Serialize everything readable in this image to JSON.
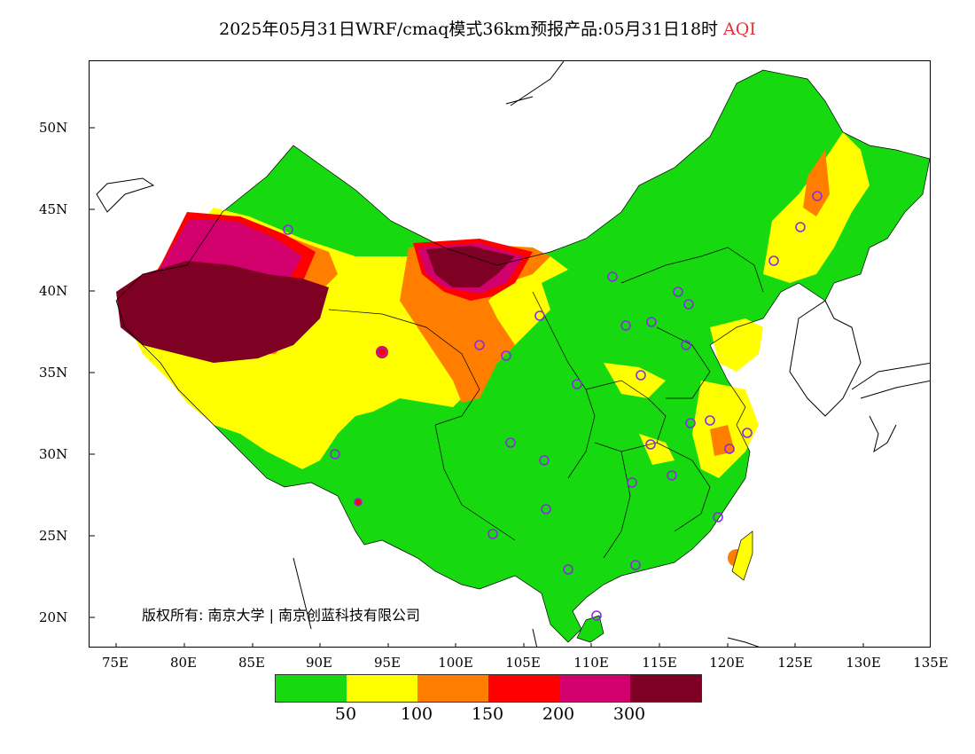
{
  "title": {
    "main": "2025年05月31日WRF/cmaq模式36km预报产品:05月31日18时",
    "variable": "AQI"
  },
  "axes": {
    "y_ticks": [
      "50N",
      "45N",
      "40N",
      "35N",
      "30N",
      "25N",
      "20N"
    ],
    "x_ticks": [
      "75E",
      "80E",
      "85E",
      "90E",
      "95E",
      "100E",
      "105E",
      "110E",
      "115E",
      "120E",
      "125E",
      "130E",
      "135E"
    ]
  },
  "copyright": "版权所有: 南京大学 | 南京创蓝科技有限公司",
  "legend": {
    "colors": [
      "#17d90f",
      "#ffff00",
      "#ff7e00",
      "#ff0000",
      "#d1006c",
      "#7e0023"
    ],
    "labels": [
      "50",
      "100",
      "150",
      "200",
      "300"
    ]
  },
  "map": {
    "land_color": "#17d90f",
    "regions": [
      "green",
      "yellow",
      "orange",
      "red",
      "purple",
      "maroon"
    ],
    "station_marker_color": "#8a2be2"
  }
}
